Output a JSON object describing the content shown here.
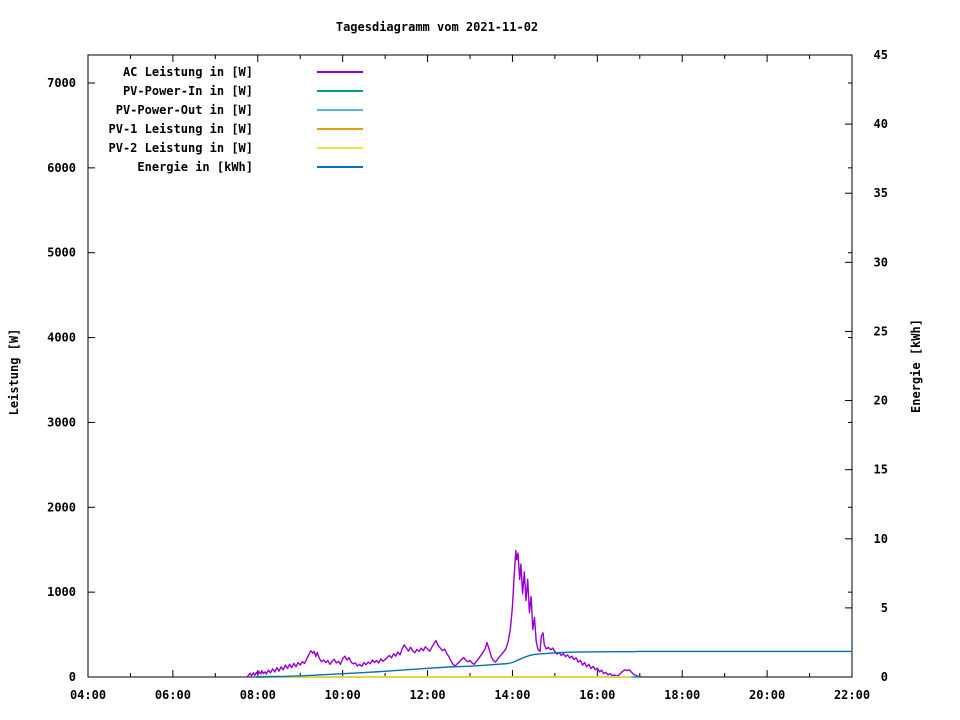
{
  "chart_data": {
    "type": "line",
    "title": "Tagesdiagramm vom 2021-11-02",
    "x_axis": {
      "unit": "time_of_day",
      "start_hour": 4,
      "end_hour": 22,
      "tick_interval_hours": 1,
      "label_every_hours": 2,
      "labeled_ticks": [
        "04:00",
        "06:00",
        "08:00",
        "10:00",
        "12:00",
        "14:00",
        "16:00",
        "18:00",
        "20:00",
        "22:00"
      ]
    },
    "y_axis_left": {
      "label": "Leistung [W]",
      "ticks": [
        0,
        1000,
        2000,
        3000,
        4000,
        5000,
        6000,
        7000
      ],
      "range": [
        0,
        7330
      ]
    },
    "y_axis_right": {
      "label": "Energie [kWh]",
      "ticks": [
        0,
        5,
        10,
        15,
        20,
        25,
        30,
        35,
        40,
        45
      ],
      "range": [
        0,
        45
      ]
    },
    "legend": {
      "position": "top-left-inside"
    },
    "series": [
      {
        "name": "AC Leistung in [W]",
        "color": "#9400D3",
        "axis": "y1",
        "points": [
          [
            7.75,
            0
          ],
          [
            7.78,
            20
          ],
          [
            7.82,
            45
          ],
          [
            7.85,
            15
          ],
          [
            7.9,
            50
          ],
          [
            7.93,
            20
          ],
          [
            7.97,
            55
          ],
          [
            8.0,
            30
          ],
          [
            8.03,
            65
          ],
          [
            8.07,
            35
          ],
          [
            8.1,
            75
          ],
          [
            8.13,
            40
          ],
          [
            8.17,
            60
          ],
          [
            8.2,
            35
          ],
          [
            8.25,
            80
          ],
          [
            8.3,
            50
          ],
          [
            8.35,
            95
          ],
          [
            8.4,
            60
          ],
          [
            8.45,
            110
          ],
          [
            8.5,
            70
          ],
          [
            8.55,
            120
          ],
          [
            8.6,
            85
          ],
          [
            8.65,
            140
          ],
          [
            8.7,
            100
          ],
          [
            8.75,
            150
          ],
          [
            8.8,
            110
          ],
          [
            8.85,
            160
          ],
          [
            8.9,
            120
          ],
          [
            8.95,
            170
          ],
          [
            9.0,
            140
          ],
          [
            9.05,
            180
          ],
          [
            9.1,
            160
          ],
          [
            9.15,
            210
          ],
          [
            9.2,
            260
          ],
          [
            9.25,
            310
          ],
          [
            9.3,
            280
          ],
          [
            9.33,
            300
          ],
          [
            9.37,
            240
          ],
          [
            9.4,
            290
          ],
          [
            9.45,
            220
          ],
          [
            9.5,
            180
          ],
          [
            9.55,
            200
          ],
          [
            9.6,
            170
          ],
          [
            9.65,
            195
          ],
          [
            9.7,
            150
          ],
          [
            9.75,
            185
          ],
          [
            9.8,
            210
          ],
          [
            9.85,
            165
          ],
          [
            9.9,
            185
          ],
          [
            9.95,
            150
          ],
          [
            10.0,
            215
          ],
          [
            10.05,
            245
          ],
          [
            10.1,
            200
          ],
          [
            10.15,
            230
          ],
          [
            10.2,
            175
          ],
          [
            10.25,
            155
          ],
          [
            10.3,
            165
          ],
          [
            10.35,
            130
          ],
          [
            10.4,
            150
          ],
          [
            10.45,
            125
          ],
          [
            10.5,
            170
          ],
          [
            10.55,
            145
          ],
          [
            10.6,
            175
          ],
          [
            10.65,
            155
          ],
          [
            10.7,
            200
          ],
          [
            10.75,
            170
          ],
          [
            10.8,
            195
          ],
          [
            10.85,
            165
          ],
          [
            10.9,
            215
          ],
          [
            10.95,
            185
          ],
          [
            11.0,
            205
          ],
          [
            11.05,
            230
          ],
          [
            11.1,
            255
          ],
          [
            11.15,
            225
          ],
          [
            11.2,
            275
          ],
          [
            11.25,
            245
          ],
          [
            11.3,
            295
          ],
          [
            11.35,
            260
          ],
          [
            11.4,
            330
          ],
          [
            11.45,
            380
          ],
          [
            11.5,
            340
          ],
          [
            11.55,
            305
          ],
          [
            11.6,
            350
          ],
          [
            11.65,
            310
          ],
          [
            11.7,
            285
          ],
          [
            11.75,
            325
          ],
          [
            11.8,
            300
          ],
          [
            11.85,
            340
          ],
          [
            11.9,
            310
          ],
          [
            11.95,
            355
          ],
          [
            12.0,
            330
          ],
          [
            12.05,
            305
          ],
          [
            12.1,
            350
          ],
          [
            12.15,
            390
          ],
          [
            12.2,
            430
          ],
          [
            12.25,
            370
          ],
          [
            12.3,
            340
          ],
          [
            12.35,
            310
          ],
          [
            12.4,
            330
          ],
          [
            12.45,
            280
          ],
          [
            12.5,
            240
          ],
          [
            12.55,
            190
          ],
          [
            12.6,
            150
          ],
          [
            12.65,
            130
          ],
          [
            12.7,
            155
          ],
          [
            12.75,
            180
          ],
          [
            12.8,
            205
          ],
          [
            12.85,
            230
          ],
          [
            12.9,
            200
          ],
          [
            12.95,
            180
          ],
          [
            13.0,
            195
          ],
          [
            13.05,
            165
          ],
          [
            13.1,
            150
          ],
          [
            13.15,
            185
          ],
          [
            13.2,
            215
          ],
          [
            13.25,
            250
          ],
          [
            13.3,
            285
          ],
          [
            13.35,
            330
          ],
          [
            13.4,
            405
          ],
          [
            13.45,
            330
          ],
          [
            13.5,
            240
          ],
          [
            13.55,
            195
          ],
          [
            13.6,
            175
          ],
          [
            13.65,
            210
          ],
          [
            13.7,
            240
          ],
          [
            13.75,
            270
          ],
          [
            13.8,
            300
          ],
          [
            13.85,
            340
          ],
          [
            13.9,
            420
          ],
          [
            13.95,
            560
          ],
          [
            14.0,
            820
          ],
          [
            14.04,
            1180
          ],
          [
            14.08,
            1490
          ],
          [
            14.1,
            1380
          ],
          [
            14.13,
            1460
          ],
          [
            14.17,
            1150
          ],
          [
            14.2,
            1330
          ],
          [
            14.24,
            980
          ],
          [
            14.28,
            1240
          ],
          [
            14.32,
            900
          ],
          [
            14.36,
            1150
          ],
          [
            14.4,
            760
          ],
          [
            14.44,
            950
          ],
          [
            14.48,
            560
          ],
          [
            14.52,
            700
          ],
          [
            14.56,
            420
          ],
          [
            14.6,
            330
          ],
          [
            14.65,
            300
          ],
          [
            14.68,
            480
          ],
          [
            14.72,
            520
          ],
          [
            14.75,
            380
          ],
          [
            14.8,
            330
          ],
          [
            14.85,
            350
          ],
          [
            14.9,
            320
          ],
          [
            14.95,
            340
          ],
          [
            15.0,
            300
          ],
          [
            15.05,
            270
          ],
          [
            15.1,
            290
          ],
          [
            15.15,
            255
          ],
          [
            15.2,
            275
          ],
          [
            15.25,
            240
          ],
          [
            15.3,
            260
          ],
          [
            15.35,
            225
          ],
          [
            15.4,
            245
          ],
          [
            15.45,
            205
          ],
          [
            15.5,
            225
          ],
          [
            15.55,
            175
          ],
          [
            15.6,
            195
          ],
          [
            15.65,
            140
          ],
          [
            15.7,
            170
          ],
          [
            15.75,
            120
          ],
          [
            15.8,
            150
          ],
          [
            15.85,
            100
          ],
          [
            15.9,
            125
          ],
          [
            15.95,
            85
          ],
          [
            16.0,
            105
          ],
          [
            16.05,
            60
          ],
          [
            16.1,
            80
          ],
          [
            16.15,
            40
          ],
          [
            16.2,
            55
          ],
          [
            16.25,
            25
          ],
          [
            16.3,
            40
          ],
          [
            16.35,
            15
          ],
          [
            16.4,
            25
          ],
          [
            16.45,
            10
          ],
          [
            16.5,
            20
          ],
          [
            16.55,
            45
          ],
          [
            16.6,
            70
          ],
          [
            16.65,
            85
          ],
          [
            16.7,
            75
          ],
          [
            16.75,
            85
          ],
          [
            16.8,
            60
          ],
          [
            16.85,
            35
          ],
          [
            16.9,
            20
          ],
          [
            16.95,
            10
          ],
          [
            17.0,
            5
          ],
          [
            17.05,
            0
          ]
        ]
      },
      {
        "name": "PV-Power-In in [W]",
        "color": "#009E73",
        "axis": "y1",
        "points": [
          [
            7.9,
            0
          ],
          [
            17.0,
            0
          ]
        ]
      },
      {
        "name": "PV-Power-Out in [W]",
        "color": "#56B4E9",
        "axis": "y1",
        "points": [
          [
            8.05,
            0
          ],
          [
            8.1,
            8
          ],
          [
            8.5,
            8
          ],
          [
            8.55,
            0
          ],
          [
            16.9,
            0
          ]
        ]
      },
      {
        "name": "PV-1 Leistung in [W]",
        "color": "#E69F00",
        "axis": "y1",
        "points": [
          [
            8.0,
            0
          ],
          [
            16.8,
            0
          ]
        ]
      },
      {
        "name": "PV-2 Leistung in [W]",
        "color": "#F0E442",
        "axis": "y1",
        "points": [
          [
            8.0,
            0
          ],
          [
            16.8,
            0
          ]
        ]
      },
      {
        "name": "Energie in [kWh]",
        "color": "#0072B2",
        "axis": "y2",
        "points": [
          [
            7.95,
            0
          ],
          [
            8.5,
            0.03
          ],
          [
            9.0,
            0.08
          ],
          [
            9.5,
            0.16
          ],
          [
            10.0,
            0.24
          ],
          [
            10.5,
            0.32
          ],
          [
            11.0,
            0.41
          ],
          [
            11.5,
            0.52
          ],
          [
            12.0,
            0.63
          ],
          [
            12.5,
            0.72
          ],
          [
            13.0,
            0.78
          ],
          [
            13.5,
            0.88
          ],
          [
            13.9,
            0.98
          ],
          [
            14.0,
            1.05
          ],
          [
            14.1,
            1.18
          ],
          [
            14.2,
            1.32
          ],
          [
            14.3,
            1.45
          ],
          [
            14.4,
            1.55
          ],
          [
            14.5,
            1.62
          ],
          [
            14.6,
            1.66
          ],
          [
            14.8,
            1.71
          ],
          [
            15.0,
            1.75
          ],
          [
            15.2,
            1.78
          ],
          [
            15.5,
            1.8
          ],
          [
            16.0,
            1.82
          ],
          [
            16.5,
            1.83
          ],
          [
            16.88,
            1.83
          ],
          [
            16.9,
            1.85
          ],
          [
            22.0,
            1.85
          ]
        ]
      }
    ]
  }
}
